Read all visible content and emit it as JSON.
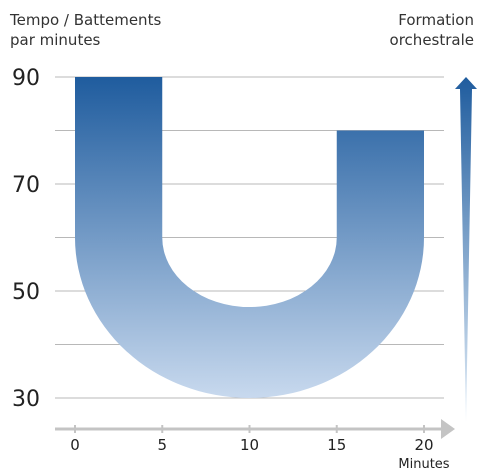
{
  "chart_data": {
    "type": "area",
    "ylabel": [
      "Tempo / Battements",
      "par minutes"
    ],
    "xlabel": "Minutes",
    "right_label": [
      "Formation",
      "orchestrale"
    ],
    "x_ticks": [
      0,
      5,
      10,
      15,
      20
    ],
    "y_ticks": [
      90,
      70,
      50,
      30
    ],
    "xlim": [
      0,
      20
    ],
    "ylim": [
      30,
      90
    ],
    "grid": "horizontal",
    "series": [
      {
        "outer": [
          [
            0,
            90
          ],
          [
            0,
            60
          ],
          [
            10,
            30
          ],
          [
            20,
            60
          ],
          [
            20,
            80
          ]
        ],
        "inner": [
          [
            15,
            80
          ],
          [
            15,
            60
          ],
          [
            10,
            47
          ],
          [
            5,
            60
          ],
          [
            5,
            90
          ]
        ],
        "color_top": "#1f5c9e",
        "color_bottom": "#c8d9ee"
      }
    ],
    "right_arrow": {
      "direction": "up",
      "color_top": "#1f5c9e",
      "color_bottom": "#e3eef8"
    }
  }
}
